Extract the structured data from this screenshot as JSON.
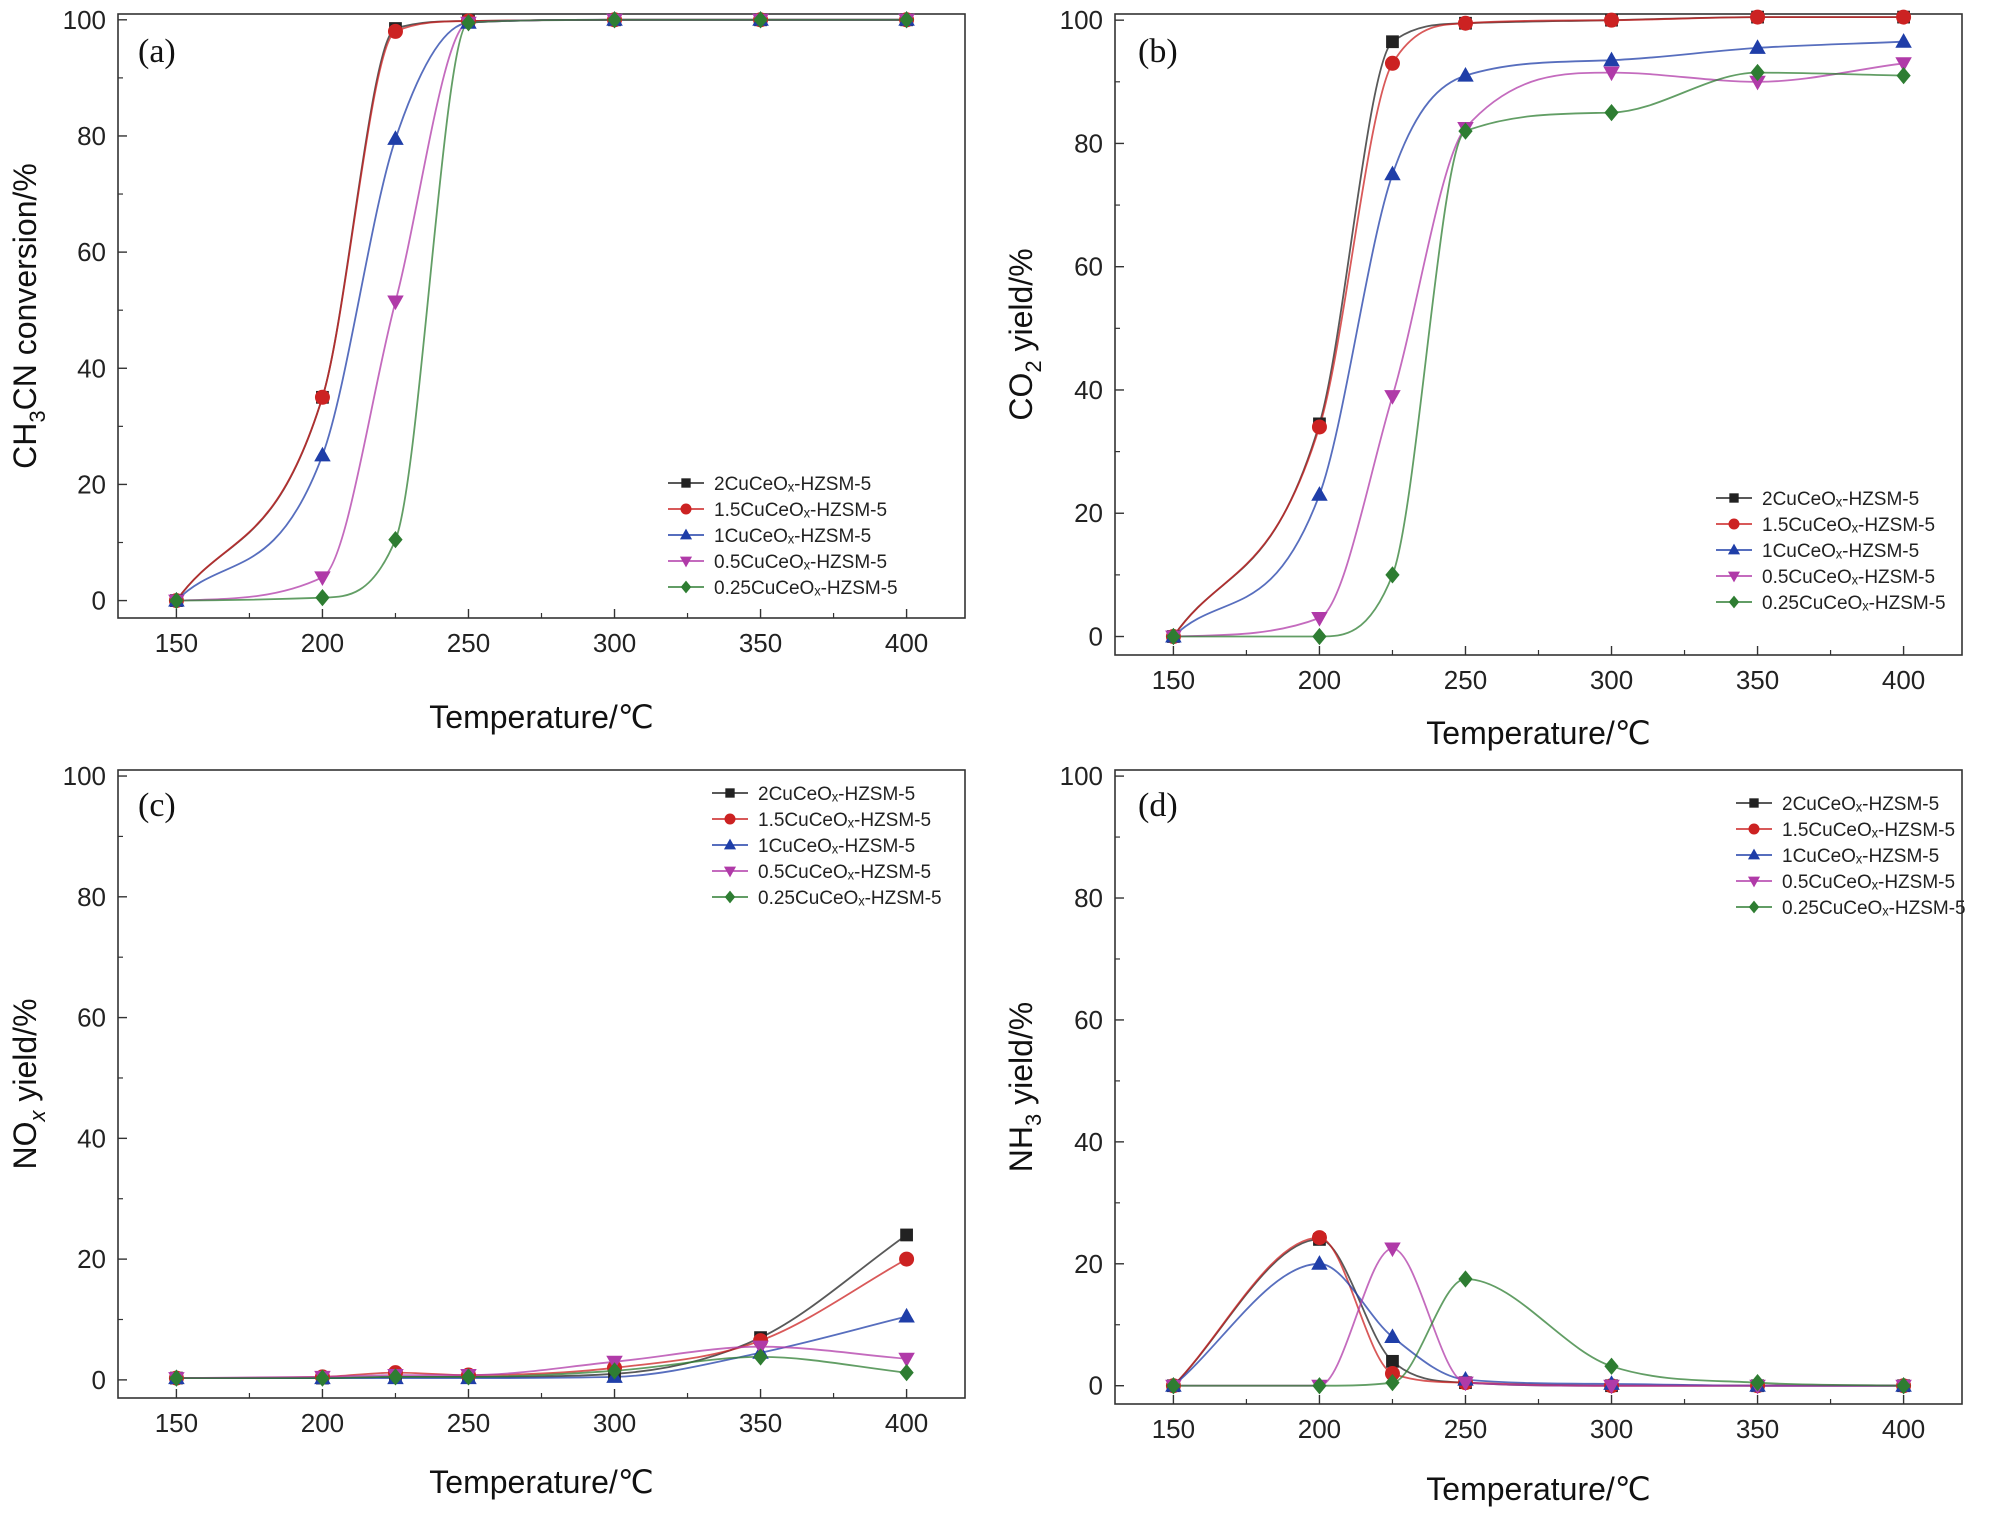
{
  "chart_data": [
    {
      "type": "line",
      "panel": "(a)",
      "xlabel": "Temperature/℃",
      "ylabel_parts": [
        "CH",
        "3",
        "CN conversion/%"
      ],
      "xlim": [
        130,
        420
      ],
      "ylim": [
        -3,
        101
      ],
      "xticks": [
        150,
        200,
        250,
        300,
        350,
        400
      ],
      "yticks": [
        0,
        20,
        40,
        60,
        80,
        100
      ],
      "legend_position": "center-right",
      "grid": false,
      "x": [
        150,
        200,
        225,
        250,
        300,
        350,
        400
      ],
      "series": [
        {
          "name": "2CuCeOₓ-HZSM-5",
          "color": "#222222",
          "marker": "square",
          "values": [
            0,
            35,
            98.5,
            99.8,
            100,
            100,
            100
          ]
        },
        {
          "name": "1.5CuCeOₓ-HZSM-5",
          "color": "#cc2222",
          "marker": "circle",
          "values": [
            0,
            35,
            98,
            99.8,
            100,
            100,
            100
          ]
        },
        {
          "name": "1CuCeOₓ-HZSM-5",
          "color": "#1f3ea8",
          "marker": "triangle-up",
          "values": [
            0,
            25,
            79.5,
            99.5,
            100,
            100,
            100
          ]
        },
        {
          "name": "0.5CuCeOₓ-HZSM-5",
          "color": "#b03aa8",
          "marker": "triangle-down",
          "values": [
            0,
            4,
            51.5,
            99.5,
            100,
            100,
            100
          ]
        },
        {
          "name": "0.25CuCeOₓ-HZSM-5",
          "color": "#2e7d32",
          "marker": "diamond",
          "values": [
            0,
            0.5,
            10.5,
            99.5,
            100,
            100,
            100
          ]
        }
      ]
    },
    {
      "type": "line",
      "panel": "(b)",
      "xlabel": "Temperature/℃",
      "ylabel_parts": [
        "CO",
        "2",
        " yield/%"
      ],
      "xlim": [
        130,
        420
      ],
      "ylim": [
        -3,
        101
      ],
      "xticks": [
        150,
        200,
        250,
        300,
        350,
        400
      ],
      "yticks": [
        0,
        20,
        40,
        60,
        80,
        100
      ],
      "legend_position": "lower-right",
      "grid": false,
      "x": [
        150,
        200,
        225,
        250,
        300,
        350,
        400
      ],
      "series": [
        {
          "name": "2CuCeOₓ-HZSM-5",
          "color": "#222222",
          "marker": "square",
          "values": [
            0,
            34.5,
            96.5,
            99.5,
            100,
            100.5,
            100.5
          ]
        },
        {
          "name": "1.5CuCeOₓ-HZSM-5",
          "color": "#cc2222",
          "marker": "circle",
          "values": [
            0,
            34,
            93,
            99.5,
            100,
            100.5,
            100.5
          ]
        },
        {
          "name": "1CuCeOₓ-HZSM-5",
          "color": "#1f3ea8",
          "marker": "triangle-up",
          "values": [
            0,
            23,
            75,
            91,
            93.5,
            95.5,
            96.5
          ]
        },
        {
          "name": "0.5CuCeOₓ-HZSM-5",
          "color": "#b03aa8",
          "marker": "triangle-down",
          "values": [
            0,
            3,
            39,
            82.5,
            91.5,
            90,
            93
          ]
        },
        {
          "name": "0.25CuCeOₓ-HZSM-5",
          "color": "#2e7d32",
          "marker": "diamond",
          "values": [
            0,
            0,
            10,
            82,
            85,
            91.5,
            91
          ]
        }
      ]
    },
    {
      "type": "line",
      "panel": "(c)",
      "xlabel": "Temperature/℃",
      "ylabel_parts": [
        "NO",
        "x",
        " yield/%"
      ],
      "xlim": [
        130,
        420
      ],
      "ylim": [
        -3,
        101
      ],
      "xticks": [
        150,
        200,
        250,
        300,
        350,
        400
      ],
      "yticks": [
        0,
        20,
        40,
        60,
        80,
        100
      ],
      "legend_position": "top-right",
      "grid": false,
      "x": [
        150,
        200,
        225,
        250,
        300,
        350,
        400
      ],
      "series": [
        {
          "name": "2CuCeOₓ-HZSM-5",
          "color": "#222222",
          "marker": "square",
          "values": [
            0.3,
            0.3,
            0.5,
            0.5,
            1,
            7,
            24
          ]
        },
        {
          "name": "1.5CuCeOₓ-HZSM-5",
          "color": "#cc2222",
          "marker": "circle",
          "values": [
            0.3,
            0.5,
            1.2,
            0.8,
            2,
            6.5,
            20
          ]
        },
        {
          "name": "1CuCeOₓ-HZSM-5",
          "color": "#1f3ea8",
          "marker": "triangle-up",
          "values": [
            0.3,
            0.3,
            0.3,
            0.3,
            0.5,
            4.5,
            10.5
          ]
        },
        {
          "name": "0.5CuCeOₓ-HZSM-5",
          "color": "#b03aa8",
          "marker": "triangle-down",
          "values": [
            0.3,
            0.5,
            0.8,
            0.8,
            3,
            5.5,
            3.5
          ]
        },
        {
          "name": "0.25CuCeOₓ-HZSM-5",
          "color": "#2e7d32",
          "marker": "diamond",
          "values": [
            0.3,
            0.3,
            0.5,
            0.5,
            1.5,
            3.8,
            1.2
          ]
        }
      ]
    },
    {
      "type": "line",
      "panel": "(d)",
      "xlabel": "Temperature/℃",
      "ylabel_parts": [
        "NH",
        "3",
        " yield/%"
      ],
      "xlim": [
        130,
        420
      ],
      "ylim": [
        -3,
        101
      ],
      "xticks": [
        150,
        200,
        250,
        300,
        350,
        400
      ],
      "yticks": [
        0,
        20,
        40,
        60,
        80,
        100
      ],
      "legend_position": "top-right",
      "grid": false,
      "x": [
        150,
        200,
        225,
        250,
        300,
        350,
        400
      ],
      "series": [
        {
          "name": "2CuCeOₓ-HZSM-5",
          "color": "#222222",
          "marker": "square",
          "values": [
            0,
            24,
            4,
            0.5,
            0,
            0,
            0
          ]
        },
        {
          "name": "1.5CuCeOₓ-HZSM-5",
          "color": "#cc2222",
          "marker": "circle",
          "values": [
            0,
            24.3,
            2,
            0.5,
            0,
            0,
            0
          ]
        },
        {
          "name": "1CuCeOₓ-HZSM-5",
          "color": "#1f3ea8",
          "marker": "triangle-up",
          "values": [
            0,
            20,
            8,
            1,
            0.3,
            0,
            0
          ]
        },
        {
          "name": "0.5CuCeOₓ-HZSM-5",
          "color": "#b03aa8",
          "marker": "triangle-down",
          "values": [
            0,
            0,
            22.5,
            0.5,
            0,
            0,
            0
          ]
        },
        {
          "name": "0.25CuCeOₓ-HZSM-5",
          "color": "#2e7d32",
          "marker": "diamond",
          "values": [
            0,
            0,
            0.5,
            17.5,
            3.2,
            0.5,
            0
          ]
        }
      ]
    }
  ]
}
